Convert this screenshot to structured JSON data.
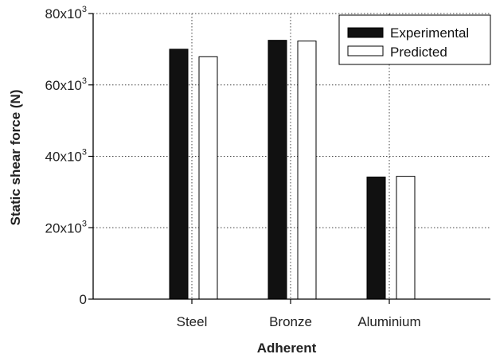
{
  "chart_data": {
    "type": "bar",
    "xlabel": "Adherent",
    "ylabel": "Static shear force (N)",
    "categories": [
      "Steel",
      "Bronze",
      "Aluminium"
    ],
    "series": [
      {
        "name": "Experimental",
        "color": "#111111",
        "values": [
          70000,
          72500,
          34200
        ]
      },
      {
        "name": "Predicted",
        "color": "#ffffff",
        "values": [
          67900,
          72300,
          34400
        ]
      }
    ],
    "ylim": [
      0,
      80000
    ],
    "yticks": [
      {
        "value": 0,
        "base": "0",
        "exp": ""
      },
      {
        "value": 20000,
        "base": "20x10",
        "exp": "3"
      },
      {
        "value": 40000,
        "base": "40x10",
        "exp": "3"
      },
      {
        "value": 60000,
        "base": "60x10",
        "exp": "3"
      },
      {
        "value": 80000,
        "base": "80x10",
        "exp": "3"
      }
    ],
    "grid": true,
    "legend_position": "top-right"
  }
}
